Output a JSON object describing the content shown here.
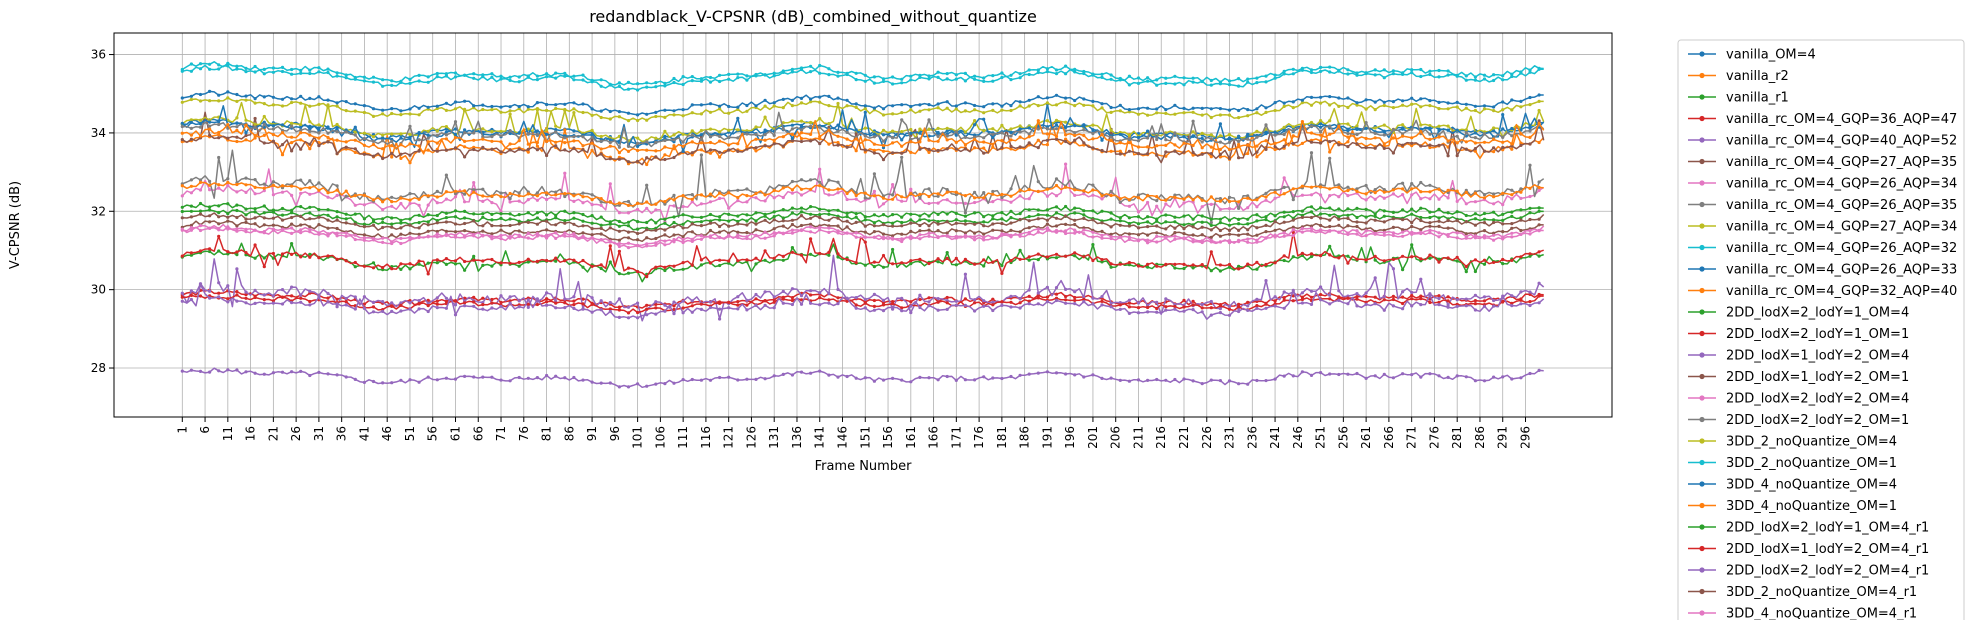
{
  "chart_data": {
    "type": "line",
    "title": "redandblack_V-CPSNR (dB)_combined_without_quantize",
    "xlabel": "Frame Number",
    "ylabel": "V-CPSNR (dB)",
    "xlim": [
      -14,
      315
    ],
    "ylim": [
      26.75,
      36.55
    ],
    "xticks": [
      "1",
      "6",
      "11",
      "16",
      "21",
      "26",
      "31",
      "36",
      "41",
      "46",
      "51",
      "56",
      "61",
      "66",
      "71",
      "76",
      "81",
      "86",
      "91",
      "96",
      "101",
      "106",
      "111",
      "116",
      "121",
      "126",
      "131",
      "136",
      "141",
      "146",
      "151",
      "156",
      "161",
      "166",
      "171",
      "176",
      "181",
      "186",
      "191",
      "196",
      "201",
      "206",
      "211",
      "216",
      "221",
      "226",
      "231",
      "236",
      "241",
      "246",
      "251",
      "256",
      "261",
      "266",
      "271",
      "276",
      "281",
      "286",
      "291",
      "296"
    ],
    "yticks": [
      "28",
      "30",
      "32",
      "34",
      "36"
    ],
    "ytick_values": [
      28,
      30,
      32,
      34,
      36
    ],
    "grid": true,
    "legend_position": "outside-right",
    "frames": [
      1,
      300
    ],
    "series": [
      {
        "name": "vanilla_OM=4",
        "color": "#1f77b4",
        "base": 34.05,
        "amp": 0.3,
        "noise": 0.07,
        "spikes": 0,
        "seed": 1
      },
      {
        "name": "vanilla_r2",
        "color": "#ff7f0e",
        "base": 33.6,
        "amp": 0.35,
        "noise": 0.08,
        "spikes": 0.18,
        "seed": 2
      },
      {
        "name": "vanilla_r1",
        "color": "#2ca02c",
        "base": 30.7,
        "amp": 0.3,
        "noise": 0.07,
        "spikes": 0.15,
        "seed": 3
      },
      {
        "name": "vanilla_rc_OM=4_GQP=36_AQP=47",
        "color": "#d62728",
        "base": 30.75,
        "amp": 0.3,
        "noise": 0.07,
        "spikes": 0.2,
        "seed": 4
      },
      {
        "name": "vanilla_rc_OM=4_GQP=40_AQP=52",
        "color": "#9467bd",
        "base": 27.75,
        "amp": 0.22,
        "noise": 0.06,
        "spikes": 0,
        "seed": 5
      },
      {
        "name": "vanilla_rc_OM=4_GQP=27_AQP=35",
        "color": "#8c564b",
        "base": 33.6,
        "amp": 0.35,
        "noise": 0.07,
        "spikes": 0.22,
        "seed": 6
      },
      {
        "name": "vanilla_rc_OM=4_GQP=26_AQP=34",
        "color": "#e377c2",
        "base": 32.3,
        "amp": 0.35,
        "noise": 0.09,
        "spikes": 0.25,
        "seed": 7
      },
      {
        "name": "vanilla_rc_OM=4_GQP=26_AQP=35",
        "color": "#7f7f7f",
        "base": 32.5,
        "amp": 0.4,
        "noise": 0.12,
        "spikes": 0.35,
        "seed": 8
      },
      {
        "name": "vanilla_rc_OM=4_GQP=27_AQP=34",
        "color": "#bcbd22",
        "base": 34.1,
        "amp": 0.3,
        "noise": 0.07,
        "spikes": 0.18,
        "seed": 9
      },
      {
        "name": "vanilla_rc_OM=4_GQP=26_AQP=32",
        "color": "#17becf",
        "base": 35.5,
        "amp": 0.3,
        "noise": 0.06,
        "spikes": 0,
        "seed": 10
      },
      {
        "name": "vanilla_rc_OM=4_GQP=26_AQP=33",
        "color": "#1f77b4",
        "base": 34.0,
        "amp": 0.32,
        "noise": 0.08,
        "spikes": 0.2,
        "seed": 11
      },
      {
        "name": "vanilla_rc_OM=4_GQP=32_AQP=40",
        "color": "#ff7f0e",
        "base": 32.45,
        "amp": 0.3,
        "noise": 0.07,
        "spikes": 0,
        "seed": 12
      },
      {
        "name": "2DD_lodX=2_lodY=1_OM=4",
        "color": "#2ca02c",
        "base": 31.95,
        "amp": 0.25,
        "noise": 0.06,
        "spikes": 0,
        "seed": 13
      },
      {
        "name": "2DD_lodX=2_lodY=1_OM=1",
        "color": "#d62728",
        "base": 29.75,
        "amp": 0.22,
        "noise": 0.06,
        "spikes": 0,
        "seed": 14
      },
      {
        "name": "2DD_lodX=1_lodY=2_OM=4",
        "color": "#9467bd",
        "base": 29.8,
        "amp": 0.3,
        "noise": 0.12,
        "spikes": 0.3,
        "seed": 15
      },
      {
        "name": "2DD_lodX=1_lodY=2_OM=1",
        "color": "#8c564b",
        "base": 31.5,
        "amp": 0.25,
        "noise": 0.06,
        "spikes": 0,
        "seed": 16
      },
      {
        "name": "2DD_lodX=2_lodY=2_OM=4",
        "color": "#e377c2",
        "base": 31.35,
        "amp": 0.25,
        "noise": 0.06,
        "spikes": 0,
        "seed": 17
      },
      {
        "name": "2DD_lodX=2_lodY=2_OM=1",
        "color": "#7f7f7f",
        "base": 33.95,
        "amp": 0.3,
        "noise": 0.08,
        "spikes": 0.15,
        "seed": 18
      },
      {
        "name": "3DD_2_noQuantize_OM=4",
        "color": "#bcbd22",
        "base": 34.6,
        "amp": 0.3,
        "noise": 0.06,
        "spikes": 0,
        "seed": 19
      },
      {
        "name": "3DD_2_noQuantize_OM=1",
        "color": "#17becf",
        "base": 35.4,
        "amp": 0.32,
        "noise": 0.06,
        "spikes": 0,
        "seed": 20
      },
      {
        "name": "3DD_4_noQuantize_OM=4",
        "color": "#1f77b4",
        "base": 34.75,
        "amp": 0.3,
        "noise": 0.06,
        "spikes": 0,
        "seed": 21
      },
      {
        "name": "3DD_4_noQuantize_OM=1",
        "color": "#ff7f0e",
        "base": 33.8,
        "amp": 0.3,
        "noise": 0.07,
        "spikes": 0.15,
        "seed": 22
      },
      {
        "name": "2DD_lodX=2_lodY=1_OM=4_r1",
        "color": "#2ca02c",
        "base": 31.8,
        "amp": 0.25,
        "noise": 0.06,
        "spikes": 0,
        "seed": 23
      },
      {
        "name": "2DD_lodX=1_lodY=2_OM=4_r1",
        "color": "#d62728",
        "base": 29.65,
        "amp": 0.22,
        "noise": 0.06,
        "spikes": 0,
        "seed": 24
      },
      {
        "name": "2DD_lodX=2_lodY=2_OM=4_r1",
        "color": "#9467bd",
        "base": 29.55,
        "amp": 0.25,
        "noise": 0.07,
        "spikes": 0.12,
        "seed": 25
      },
      {
        "name": "3DD_2_noQuantize_OM=4_r1",
        "color": "#8c564b",
        "base": 31.7,
        "amp": 0.25,
        "noise": 0.06,
        "spikes": 0,
        "seed": 26
      },
      {
        "name": "3DD_4_noQuantize_OM=4_r1",
        "color": "#e377c2",
        "base": 31.4,
        "amp": 0.25,
        "noise": 0.06,
        "spikes": 0,
        "seed": 27
      }
    ]
  }
}
